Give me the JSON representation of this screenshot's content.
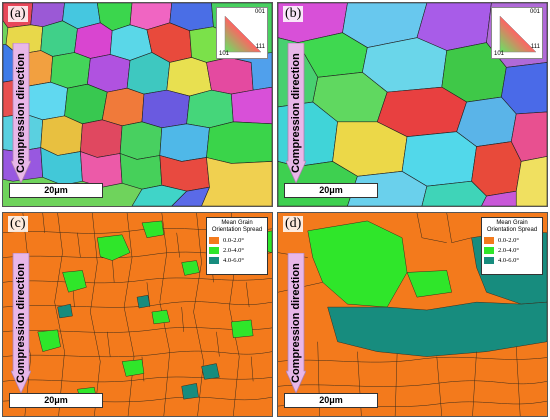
{
  "panels": [
    {
      "label": "(a)",
      "scale": "20μm",
      "direction": "Compression direction"
    },
    {
      "label": "(b)",
      "scale": "20μm",
      "direction": "Compression direction"
    },
    {
      "label": "(c)",
      "scale": "20μm",
      "direction": "Compression direction"
    },
    {
      "label": "(d)",
      "scale": "20μm",
      "direction": "Compression direction"
    }
  ],
  "ipf_key": {
    "top": "001",
    "bottom_left": "101",
    "bottom_right": "111"
  },
  "legend": {
    "title_line1": "Mean Grain",
    "title_line2": "Orientation Spread",
    "items": [
      {
        "label": "0.0-2.0°",
        "color": "#f37a1c"
      },
      {
        "label": "2.0-4.0°",
        "color": "#2fe62a"
      },
      {
        "label": "4.0-6.0°",
        "color": "#178c7e"
      }
    ]
  },
  "colors": {
    "orange": "#f37a1c",
    "green": "#2fe62a",
    "teal": "#178c7e",
    "arrow": "#e8b7e8"
  }
}
